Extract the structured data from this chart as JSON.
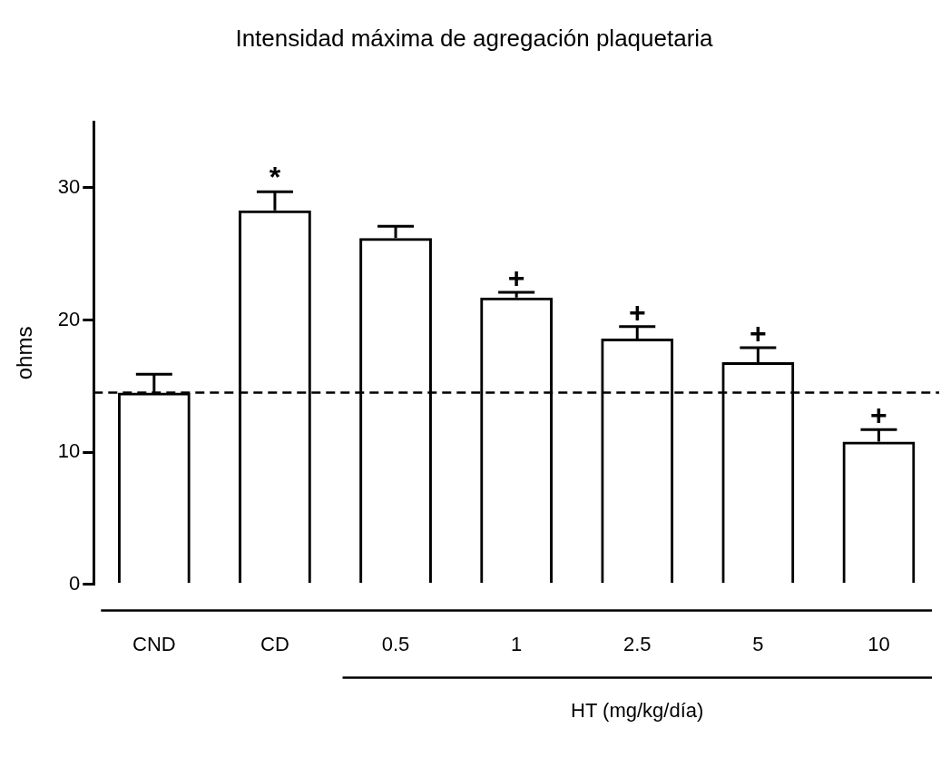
{
  "chart_data": {
    "type": "bar",
    "title": "Intensidad máxima de agregación plaquetaria",
    "ylabel": "ohms",
    "xlabel": "HT (mg/kg/día)",
    "categories": [
      "CND",
      "CD",
      "0.5",
      "1",
      "2.5",
      "5",
      "10"
    ],
    "values": [
      14.5,
      28.3,
      26.2,
      21.7,
      18.6,
      16.8,
      10.8
    ],
    "errors": [
      [
        14.5,
        15.9
      ],
      [
        28.3,
        29.7
      ],
      [
        26.2,
        27.1
      ],
      [
        21.7,
        22.1
      ],
      [
        18.6,
        19.5
      ],
      [
        16.8,
        17.9
      ],
      [
        10.8,
        11.7
      ]
    ],
    "color": "#000000",
    "ylim": [
      0,
      35
    ],
    "yticks": [
      0,
      10,
      20,
      30
    ],
    "grid": false,
    "ref_lines": [
      {
        "axis": "y",
        "value": 14.5,
        "line_style": "dashed",
        "color": "#000000"
      }
    ],
    "annotations": [
      {
        "text": "*",
        "x": "CD",
        "y": 29.7
      },
      {
        "text": "+",
        "x": "1",
        "y": 22.1
      },
      {
        "text": "+",
        "x": "2.5",
        "y": 19.5
      },
      {
        "text": "+",
        "x": "5",
        "y": 17.9
      },
      {
        "text": "+",
        "x": "10",
        "y": 11.7
      }
    ]
  }
}
